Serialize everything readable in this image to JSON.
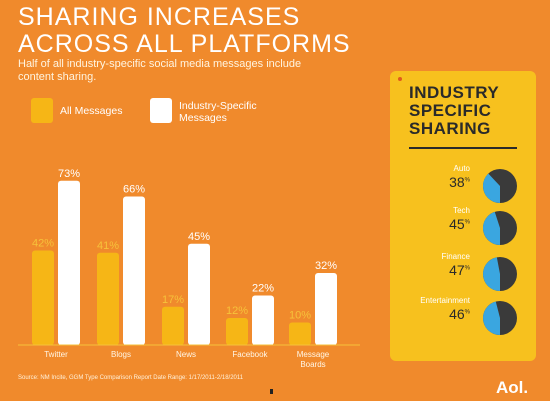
{
  "title": "SHARING INCREASES ACROSS ALL PLATFORMS",
  "subtitle": "Half of all industry-specific social media messages include content sharing.",
  "legend": {
    "all": "All Messages",
    "industry": "Industry-Specific Messages"
  },
  "colors": {
    "background": "#f08a2c",
    "all_messages": "#f6b616",
    "industry_specific": "#ffffff",
    "panel": "#f7c11e",
    "pie_dark": "#3a3a3a",
    "pie_blue": "#3aa6e0"
  },
  "chart_data": [
    {
      "type": "bar",
      "categories": [
        "Twitter",
        "Blogs",
        "News",
        "Facebook",
        "Message Boards"
      ],
      "series": [
        {
          "name": "All Messages",
          "values": [
            42,
            41,
            17,
            12,
            10
          ]
        },
        {
          "name": "Industry-Specific Messages",
          "values": [
            73,
            66,
            45,
            22,
            32
          ]
        }
      ],
      "unit": "%",
      "ylim": [
        0,
        80
      ],
      "grid": false,
      "legend": "top-left"
    },
    {
      "type": "pie",
      "title": "INDUSTRY SPECIFIC SHARING",
      "categories": [
        "Auto",
        "Tech",
        "Finance",
        "Entertainment"
      ],
      "values": [
        38,
        45,
        47,
        46
      ],
      "unit": "%"
    }
  ],
  "source": "Source: NM Incite, GGM Type Comparison Report Date Range: 1/17/2011-2/18/2011",
  "brand": "Aol."
}
